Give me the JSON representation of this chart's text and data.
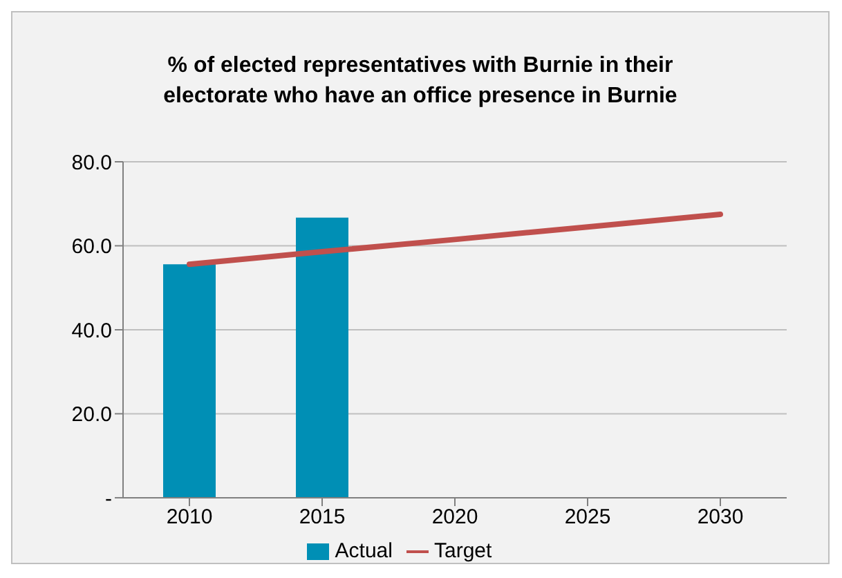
{
  "chart_data": {
    "type": "bar",
    "title": "% of elected representatives with Burnie in their electorate who have an office presence in Burnie",
    "categories": [
      "2010",
      "2015",
      "2020",
      "2025",
      "2030"
    ],
    "series": [
      {
        "name": "Actual",
        "color": "#008fb5",
        "values": [
          55.6,
          66.7,
          null,
          null,
          null
        ]
      },
      {
        "name": "Target",
        "type": "line",
        "color": "#c0504d",
        "values": [
          55.6,
          58.6,
          61.5,
          64.5,
          67.5
        ]
      }
    ],
    "ylim": [
      0,
      80
    ],
    "yticks": [
      {
        "value": 0,
        "label": "-"
      },
      {
        "value": 20,
        "label": "20.0"
      },
      {
        "value": 40,
        "label": "40.0"
      },
      {
        "value": 60,
        "label": "60.0"
      },
      {
        "value": 80,
        "label": "80.0"
      }
    ],
    "grid": "y",
    "legend": "bottom",
    "marker": "none"
  }
}
